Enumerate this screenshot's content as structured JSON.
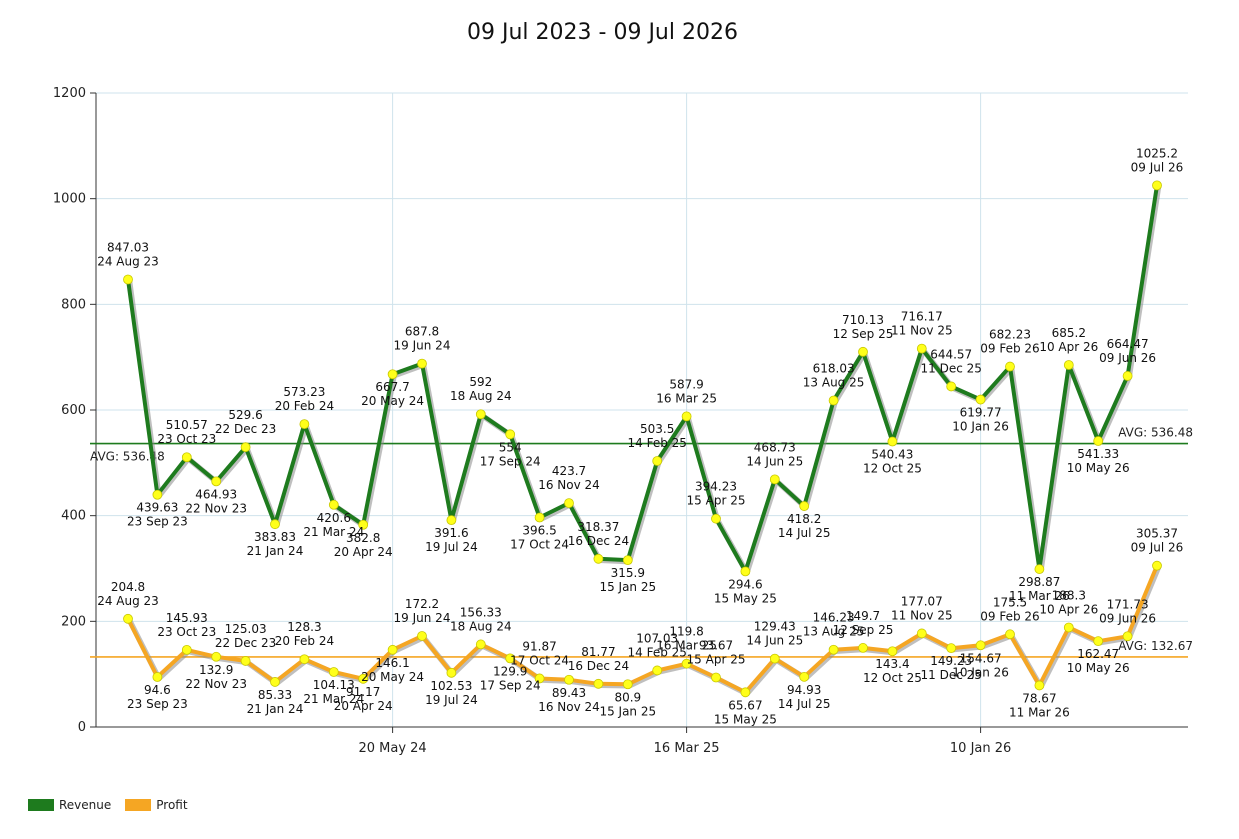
{
  "chart_data": {
    "type": "line",
    "title": "09 Jul 2023 - 09 Jul 2026",
    "ylim": [
      0,
      1200
    ],
    "yticks": [
      "0",
      "200",
      "400",
      "600",
      "800",
      "1000",
      "1200"
    ],
    "xticks": [
      {
        "date": "2024-05-20",
        "label": "20 May 24"
      },
      {
        "date": "2025-03-16",
        "label": "16 Mar 25"
      },
      {
        "date": "2026-01-10",
        "label": "10 Jan 26"
      }
    ],
    "grid": true,
    "legend_position": "bottom-left",
    "series": [
      {
        "name": "Revenue",
        "color": "#1e7b1e",
        "avg_label": "AVG: 536.48",
        "avg": 536.48,
        "points": [
          {
            "date": "2023-08-24",
            "label": "24 Aug 23",
            "value": 847.03,
            "value_text": "847.03"
          },
          {
            "date": "2023-09-23",
            "label": "23 Sep 23",
            "value": 439.63,
            "value_text": "439.63"
          },
          {
            "date": "2023-10-23",
            "label": "23 Oct 23",
            "value": 510.57,
            "value_text": "510.57"
          },
          {
            "date": "2023-11-22",
            "label": "22 Nov 23",
            "value": 464.93,
            "value_text": "464.93"
          },
          {
            "date": "2023-12-22",
            "label": "22 Dec 23",
            "value": 529.6,
            "value_text": "529.6"
          },
          {
            "date": "2024-01-21",
            "label": "21 Jan 24",
            "value": 383.83,
            "value_text": "383.83"
          },
          {
            "date": "2024-02-20",
            "label": "20 Feb 24",
            "value": 573.23,
            "value_text": "573.23"
          },
          {
            "date": "2024-03-21",
            "label": "21 Mar 24",
            "value": 420.6,
            "value_text": "420.6"
          },
          {
            "date": "2024-04-20",
            "label": "20 Apr 24",
            "value": 382.8,
            "value_text": "382.8"
          },
          {
            "date": "2024-05-20",
            "label": "20 May 24",
            "value": 667.7,
            "value_text": "667.7"
          },
          {
            "date": "2024-06-19",
            "label": "19 Jun 24",
            "value": 687.8,
            "value_text": "687.8"
          },
          {
            "date": "2024-07-19",
            "label": "19 Jul 24",
            "value": 391.6,
            "value_text": "391.6"
          },
          {
            "date": "2024-08-18",
            "label": "18 Aug 24",
            "value": 592,
            "value_text": "592"
          },
          {
            "date": "2024-09-17",
            "label": "17 Sep 24",
            "value": 554,
            "value_text": "554"
          },
          {
            "date": "2024-10-17",
            "label": "17 Oct 24",
            "value": 396.5,
            "value_text": "396.5"
          },
          {
            "date": "2024-11-16",
            "label": "16 Nov 24",
            "value": 423.7,
            "value_text": "423.7"
          },
          {
            "date": "2024-12-16",
            "label": "16 Dec 24",
            "value": 318.37,
            "value_text": "318.37"
          },
          {
            "date": "2025-01-15",
            "label": "15 Jan 25",
            "value": 315.9,
            "value_text": "315.9"
          },
          {
            "date": "2025-02-14",
            "label": "14 Feb 25",
            "value": 503.5,
            "value_text": "503.5"
          },
          {
            "date": "2025-03-16",
            "label": "16 Mar 25",
            "value": 587.9,
            "value_text": "587.9"
          },
          {
            "date": "2025-04-15",
            "label": "15 Apr 25",
            "value": 394.23,
            "value_text": "394.23"
          },
          {
            "date": "2025-05-15",
            "label": "15 May 25",
            "value": 294.6,
            "value_text": "294.6"
          },
          {
            "date": "2025-06-14",
            "label": "14 Jun 25",
            "value": 468.73,
            "value_text": "468.73"
          },
          {
            "date": "2025-07-14",
            "label": "14 Jul 25",
            "value": 418.2,
            "value_text": "418.2"
          },
          {
            "date": "2025-08-13",
            "label": "13 Aug 25",
            "value": 618.03,
            "value_text": "618.03"
          },
          {
            "date": "2025-09-12",
            "label": "12 Sep 25",
            "value": 710.13,
            "value_text": "710.13"
          },
          {
            "date": "2025-10-12",
            "label": "12 Oct 25",
            "value": 540.43,
            "value_text": "540.43"
          },
          {
            "date": "2025-11-11",
            "label": "11 Nov 25",
            "value": 716.17,
            "value_text": "716.17"
          },
          {
            "date": "2025-12-11",
            "label": "11 Dec 25",
            "value": 644.57,
            "value_text": "644.57"
          },
          {
            "date": "2026-01-10",
            "label": "10 Jan 26",
            "value": 619.77,
            "value_text": "619.77"
          },
          {
            "date": "2026-02-09",
            "label": "09 Feb 26",
            "value": 682.23,
            "value_text": "682.23"
          },
          {
            "date": "2026-03-11",
            "label": "11 Mar 26",
            "value": 298.87,
            "value_text": "298.87"
          },
          {
            "date": "2026-04-10",
            "label": "10 Apr 26",
            "value": 685.2,
            "value_text": "685.2"
          },
          {
            "date": "2026-05-10",
            "label": "10 May 26",
            "value": 541.33,
            "value_text": "541.33"
          },
          {
            "date": "2026-06-09",
            "label": "09 Jun 26",
            "value": 664.47,
            "value_text": "664.47"
          },
          {
            "date": "2026-07-09",
            "label": "09 Jul 26",
            "value": 1025.2,
            "value_text": "1025.2"
          }
        ]
      },
      {
        "name": "Profit",
        "color": "#f5a623",
        "avg_label": "AVG: 132.67",
        "avg": 132.67,
        "points": [
          {
            "date": "2023-08-24",
            "label": "24 Aug 23",
            "value": 204.8,
            "value_text": "204.8"
          },
          {
            "date": "2023-09-23",
            "label": "23 Sep 23",
            "value": 94.6,
            "value_text": "94.6"
          },
          {
            "date": "2023-10-23",
            "label": "23 Oct 23",
            "value": 145.93,
            "value_text": "145.93"
          },
          {
            "date": "2023-11-22",
            "label": "22 Nov 23",
            "value": 132.9,
            "value_text": "132.9"
          },
          {
            "date": "2023-12-22",
            "label": "22 Dec 23",
            "value": 125.03,
            "value_text": "125.03"
          },
          {
            "date": "2024-01-21",
            "label": "21 Jan 24",
            "value": 85.33,
            "value_text": "85.33"
          },
          {
            "date": "2024-02-20",
            "label": "20 Feb 24",
            "value": 128.3,
            "value_text": "128.3"
          },
          {
            "date": "2024-03-21",
            "label": "21 Mar 24",
            "value": 104.13,
            "value_text": "104.13"
          },
          {
            "date": "2024-04-20",
            "label": "20 Apr 24",
            "value": 91.17,
            "value_text": "91.17"
          },
          {
            "date": "2024-05-20",
            "label": "20 May 24",
            "value": 146.1,
            "value_text": "146.1"
          },
          {
            "date": "2024-06-19",
            "label": "19 Jun 24",
            "value": 172.2,
            "value_text": "172.2"
          },
          {
            "date": "2024-07-19",
            "label": "19 Jul 24",
            "value": 102.53,
            "value_text": "102.53"
          },
          {
            "date": "2024-08-18",
            "label": "18 Aug 24",
            "value": 156.33,
            "value_text": "156.33"
          },
          {
            "date": "2024-09-17",
            "label": "17 Sep 24",
            "value": 129.9,
            "value_text": "129.9"
          },
          {
            "date": "2024-10-17",
            "label": "17 Oct 24",
            "value": 91.87,
            "value_text": "91.87"
          },
          {
            "date": "2024-11-16",
            "label": "16 Nov 24",
            "value": 89.43,
            "value_text": "89.43"
          },
          {
            "date": "2024-12-16",
            "label": "16 Dec 24",
            "value": 81.77,
            "value_text": "81.77"
          },
          {
            "date": "2025-01-15",
            "label": "15 Jan 25",
            "value": 80.9,
            "value_text": "80.9"
          },
          {
            "date": "2025-02-14",
            "label": "14 Feb 25",
            "value": 107.03,
            "value_text": "107.03"
          },
          {
            "date": "2025-03-16",
            "label": "16 Mar 25",
            "value": 119.8,
            "value_text": "119.8"
          },
          {
            "date": "2025-04-15",
            "label": "15 Apr 25",
            "value": 93.67,
            "value_text": "93.67"
          },
          {
            "date": "2025-05-15",
            "label": "15 May 25",
            "value": 65.67,
            "value_text": "65.67"
          },
          {
            "date": "2025-06-14",
            "label": "14 Jun 25",
            "value": 129.43,
            "value_text": "129.43"
          },
          {
            "date": "2025-07-14",
            "label": "14 Jul 25",
            "value": 94.93,
            "value_text": "94.93"
          },
          {
            "date": "2025-08-13",
            "label": "13 Aug 25",
            "value": 146.23,
            "value_text": "146.23"
          },
          {
            "date": "2025-09-12",
            "label": "12 Sep 25",
            "value": 149.7,
            "value_text": "149.7"
          },
          {
            "date": "2025-10-12",
            "label": "12 Oct 25",
            "value": 143.4,
            "value_text": "143.4"
          },
          {
            "date": "2025-11-11",
            "label": "11 Nov 25",
            "value": 177.07,
            "value_text": "177.07"
          },
          {
            "date": "2025-12-11",
            "label": "11 Dec 25",
            "value": 149.23,
            "value_text": "149.23"
          },
          {
            "date": "2026-01-10",
            "label": "10 Jan 26",
            "value": 154.67,
            "value_text": "154.67"
          },
          {
            "date": "2026-02-09",
            "label": "09 Feb 26",
            "value": 175.5,
            "value_text": "175.5"
          },
          {
            "date": "2026-03-11",
            "label": "11 Mar 26",
            "value": 78.67,
            "value_text": "78.67"
          },
          {
            "date": "2026-04-10",
            "label": "10 Apr 26",
            "value": 188.3,
            "value_text": "188.3"
          },
          {
            "date": "2026-05-10",
            "label": "10 May 26",
            "value": 162.47,
            "value_text": "162.47"
          },
          {
            "date": "2026-06-09",
            "label": "09 Jun 26",
            "value": 171.73,
            "value_text": "171.73"
          },
          {
            "date": "2026-07-09",
            "label": "09 Jul 26",
            "value": 305.37,
            "value_text": "305.37"
          }
        ]
      }
    ]
  }
}
